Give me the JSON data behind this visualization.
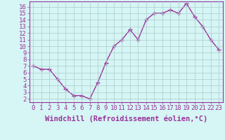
{
  "x": [
    0,
    1,
    2,
    3,
    4,
    5,
    6,
    7,
    8,
    9,
    10,
    11,
    12,
    13,
    14,
    15,
    16,
    17,
    18,
    19,
    20,
    21,
    22,
    23
  ],
  "y": [
    7.0,
    6.5,
    6.5,
    5.0,
    3.5,
    2.5,
    2.5,
    2.0,
    4.5,
    7.5,
    10.0,
    11.0,
    12.5,
    11.0,
    14.0,
    15.0,
    15.0,
    15.5,
    15.0,
    16.5,
    14.5,
    13.0,
    11.0,
    9.5
  ],
  "line_color": "#993399",
  "marker": "+",
  "marker_size": 4,
  "line_width": 1.0,
  "bg_color": "#d6f5f5",
  "grid_color": "#aacccc",
  "xlabel": "Windchill (Refroidissement éolien,°C)",
  "xlabel_fontsize": 7.5,
  "xtick_labels": [
    "0",
    "1",
    "2",
    "3",
    "4",
    "5",
    "6",
    "7",
    "8",
    "9",
    "10",
    "11",
    "12",
    "13",
    "14",
    "15",
    "16",
    "17",
    "18",
    "19",
    "20",
    "21",
    "22",
    "23"
  ],
  "ytick_min": 2,
  "ytick_max": 16,
  "ylim": [
    1.5,
    16.8
  ],
  "xlim": [
    -0.5,
    23.5
  ],
  "tick_fontsize": 6.5,
  "spine_color": "#993399",
  "fig_width": 3.2,
  "fig_height": 2.0,
  "dpi": 100
}
